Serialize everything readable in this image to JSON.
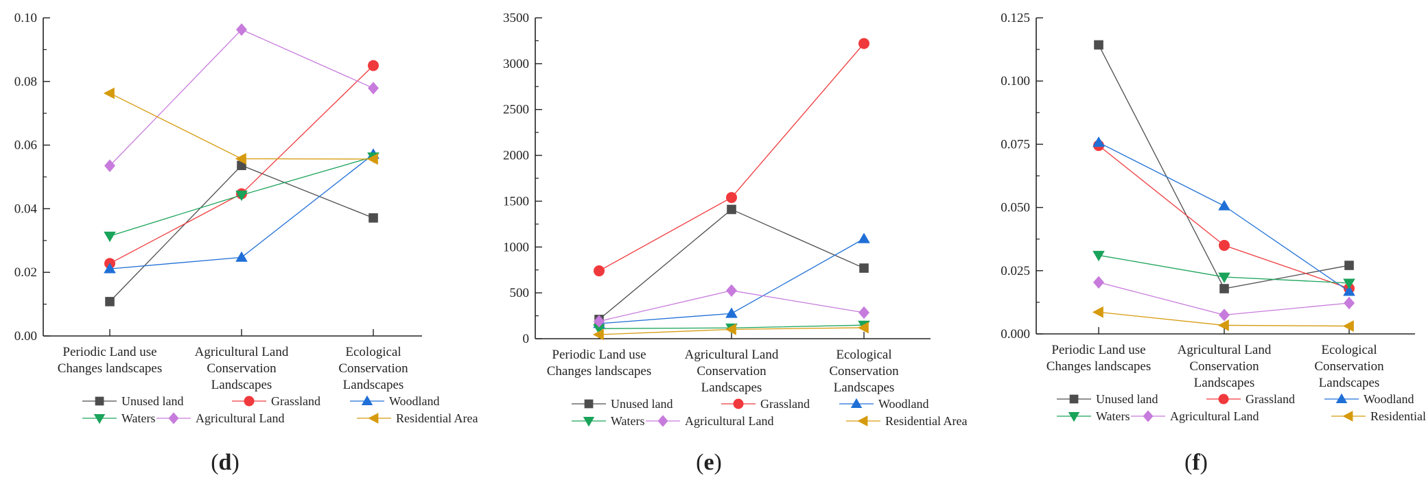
{
  "chart_data": [
    {
      "type": "line",
      "panel_label": "d",
      "categories": [
        "Periodic Land use|Changes landscapes",
        "Agricultural Land|Conservation|Landscapes",
        "Ecological|Conservation|Landscapes"
      ],
      "ylim": [
        0,
        0.1
      ],
      "yticks": [
        "0.00",
        "0.02",
        "0.04",
        "0.06",
        "0.08",
        "0.10"
      ],
      "series": [
        {
          "name": "Unused land",
          "values": [
            0.0108,
            0.0536,
            0.0371
          ]
        },
        {
          "name": "Grassland",
          "values": [
            0.0228,
            0.0447,
            0.085
          ]
        },
        {
          "name": "Woodland",
          "values": [
            0.0211,
            0.0247,
            0.0571
          ]
        },
        {
          "name": "Waters",
          "values": [
            0.0314,
            0.0443,
            0.0563
          ]
        },
        {
          "name": "Agricultural Land",
          "values": [
            0.0535,
            0.0963,
            0.0779
          ]
        },
        {
          "name": "Residential Area",
          "values": [
            0.0763,
            0.0557,
            0.0556
          ]
        }
      ]
    },
    {
      "type": "line",
      "panel_label": "e",
      "categories": [
        "Periodic Land use|Changes landscapes",
        "Agricultural Land|Conservation|Landscapes",
        "Ecological|Conservation|Landscapes"
      ],
      "ylim": [
        0,
        3500
      ],
      "yticks": [
        "0",
        "500",
        "1000",
        "1500",
        "2000",
        "2500",
        "3000",
        "3500"
      ],
      "series": [
        {
          "name": "Unused land",
          "values": [
            210,
            1410,
            770
          ]
        },
        {
          "name": "Grassland",
          "values": [
            740,
            1540,
            3220
          ]
        },
        {
          "name": "Woodland",
          "values": [
            165,
            275,
            1090
          ]
        },
        {
          "name": "Waters",
          "values": [
            110,
            118,
            148
          ]
        },
        {
          "name": "Agricultural Land",
          "values": [
            190,
            525,
            285
          ]
        },
        {
          "name": "Residential Area",
          "values": [
            45,
            102,
            120
          ]
        }
      ]
    },
    {
      "type": "line",
      "panel_label": "f",
      "categories": [
        "Periodic Land use|Changes landscapes",
        "Agricultural Land|Conservation|Landscapes",
        "Ecological|Conservation|Landscapes"
      ],
      "ylim": [
        0,
        0.125
      ],
      "yticks": [
        "0.000",
        "0.025",
        "0.050",
        "0.075",
        "0.100",
        "0.125"
      ],
      "series": [
        {
          "name": "Unused land",
          "values": [
            0.1143,
            0.0179,
            0.0271
          ]
        },
        {
          "name": "Grassland",
          "values": [
            0.0745,
            0.035,
            0.018
          ]
        },
        {
          "name": "Woodland",
          "values": [
            0.0757,
            0.0506,
            0.0168
          ]
        },
        {
          "name": "Waters",
          "values": [
            0.0311,
            0.0225,
            0.0201
          ]
        },
        {
          "name": "Agricultural Land",
          "values": [
            0.0204,
            0.0075,
            0.0122
          ]
        },
        {
          "name": "Residential Area",
          "values": [
            0.0086,
            0.0034,
            0.0031
          ]
        }
      ]
    }
  ],
  "style": {
    "series_colors": {
      "Unused land": "#4d4d4d",
      "Grassland": "#f0393c",
      "Woodland": "#1f6fd6",
      "Waters": "#1aa35a",
      "Agricultural Land": "#c77bdc",
      "Residential Area": "#d69a0e"
    },
    "series_markers": {
      "Unused land": "square",
      "Grassland": "circle",
      "Woodland": "triangle-up",
      "Waters": "triangle-down",
      "Agricultural Land": "diamond",
      "Residential Area": "triangle-left"
    }
  }
}
